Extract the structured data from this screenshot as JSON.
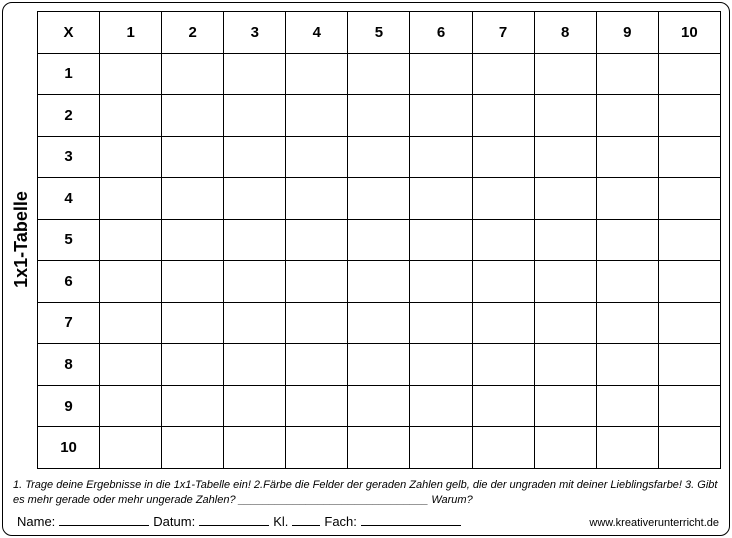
{
  "worksheet": {
    "side_title": "1x1-Tabelle",
    "table": {
      "type": "table",
      "corner_label": "X",
      "column_headers": [
        "1",
        "2",
        "3",
        "4",
        "5",
        "6",
        "7",
        "8",
        "9",
        "10"
      ],
      "row_headers": [
        "1",
        "2",
        "3",
        "4",
        "5",
        "6",
        "7",
        "8",
        "9",
        "10"
      ],
      "rows": [
        [
          "",
          "",
          "",
          "",
          "",
          "",
          "",
          "",
          "",
          ""
        ],
        [
          "",
          "",
          "",
          "",
          "",
          "",
          "",
          "",
          "",
          ""
        ],
        [
          "",
          "",
          "",
          "",
          "",
          "",
          "",
          "",
          "",
          ""
        ],
        [
          "",
          "",
          "",
          "",
          "",
          "",
          "",
          "",
          "",
          ""
        ],
        [
          "",
          "",
          "",
          "",
          "",
          "",
          "",
          "",
          "",
          ""
        ],
        [
          "",
          "",
          "",
          "",
          "",
          "",
          "",
          "",
          "",
          ""
        ],
        [
          "",
          "",
          "",
          "",
          "",
          "",
          "",
          "",
          "",
          ""
        ],
        [
          "",
          "",
          "",
          "",
          "",
          "",
          "",
          "",
          "",
          ""
        ],
        [
          "",
          "",
          "",
          "",
          "",
          "",
          "",
          "",
          "",
          ""
        ],
        [
          "",
          "",
          "",
          "",
          "",
          "",
          "",
          "",
          "",
          ""
        ]
      ],
      "border_color": "#000000",
      "background_color": "#ffffff",
      "header_font_weight": "bold",
      "font_size": 15
    },
    "instructions_text": "1. Trage deine Ergebnisse in die 1x1-Tabelle ein! 2.Färbe die Felder der geraden Zahlen gelb, die der ungraden mit deiner Lieblingsfarbe! 3. Gibt es mehr gerade oder mehr ungerade Zahlen? _______________________________ Warum?",
    "footer": {
      "name_label": "Name:",
      "datum_label": "Datum:",
      "kl_label": "Kl.",
      "fach_label": "Fach:",
      "url": "www.kreativerunterricht.de",
      "blank_widths": {
        "name": 90,
        "datum": 70,
        "kl": 28,
        "fach": 100
      }
    }
  }
}
